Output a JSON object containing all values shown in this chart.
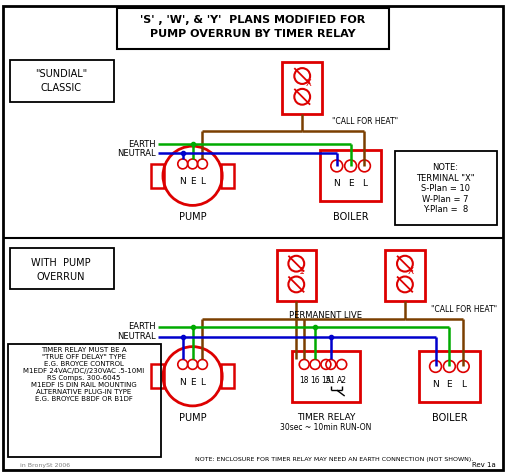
{
  "title_line1": "'S' , 'W', & 'Y'  PLANS MODIFIED FOR",
  "title_line2": "PUMP OVERRUN BY TIMER RELAY",
  "bg_color": "#ffffff",
  "red": "#dd0000",
  "green": "#00aa00",
  "blue": "#0000cc",
  "brown": "#7B3F00",
  "note_text": "NOTE:\nTERMINAL \"X\"\nS-Plan = 10\nW-Plan = 7\nY-Plan =  8",
  "timer_relay_label1": "TIMER RELAY",
  "timer_relay_label2": "30sec ~ 10min RUN-ON",
  "timer_relay_note": "NOTE: ENCLOSURE FOR TIMER RELAY MAY NEED AN EARTH CONNECTION (NOT SHOWN).",
  "timer_relay_info": "TIMER RELAY MUST BE A\n\"TRUE OFF DELAY\" TYPE\nE.G. BROYCE CONTROL\nM1EDF 24VAC/DC//230VAC .5-10MI\nRS Comps. 300-6045\nM1EDF IS DIN RAIL MOUNTING\nALTERNATIVE PLUG-IN TYPE\nE.G. BROYCE B8DF OR B1DF",
  "rev_text": "Rev 1a",
  "draw_text": "in BronySt 2006"
}
